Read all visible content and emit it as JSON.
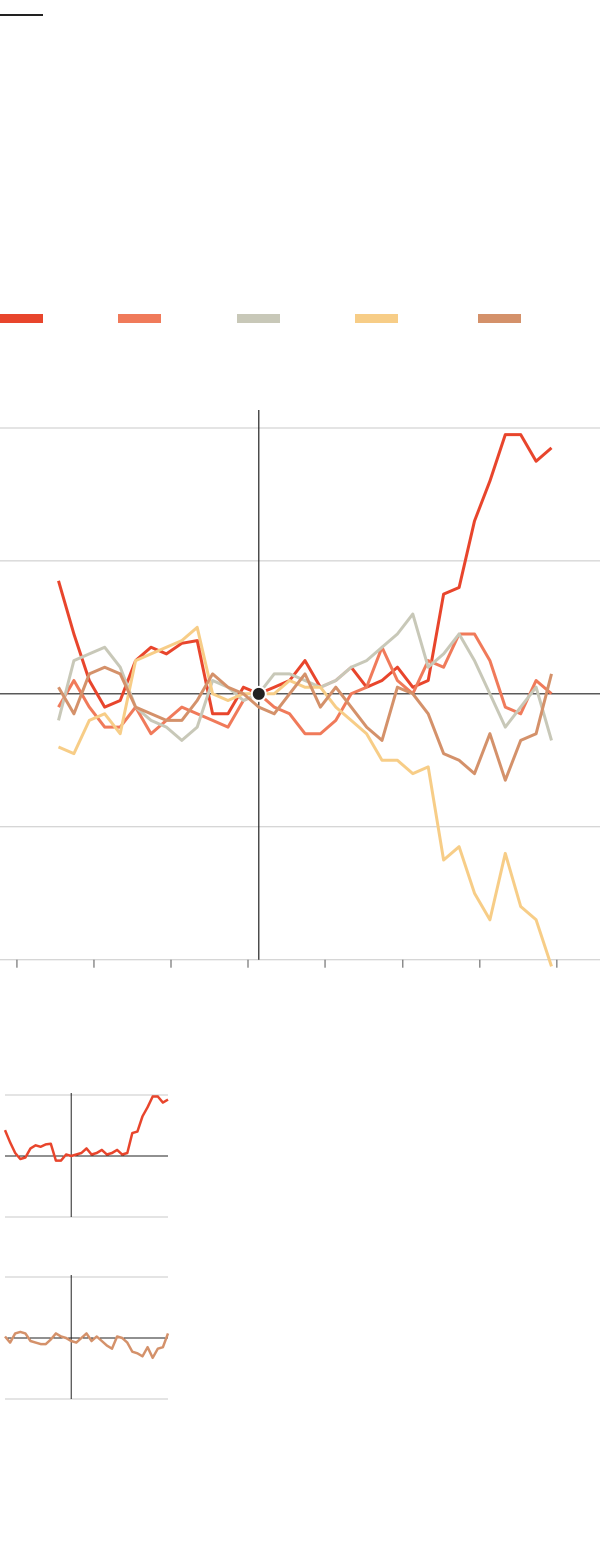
{
  "chart_data": {
    "type": "line",
    "x": [
      -2.6,
      -2.4,
      -2.2,
      -2.0,
      -1.8,
      -1.6,
      -1.4,
      -1.2,
      -1.0,
      -0.8,
      -0.6,
      -0.4,
      -0.2,
      0.0,
      0.2,
      0.4,
      0.6,
      0.8,
      1.0,
      1.2,
      1.4,
      1.6,
      1.8,
      2.0,
      2.2,
      2.4,
      2.6,
      2.8,
      3.0,
      3.2,
      3.4,
      3.6,
      3.8
    ],
    "series": [
      {
        "color": "#e8452c",
        "values": [
          0.85,
          0.45,
          0.1,
          -0.1,
          -0.05,
          0.25,
          0.35,
          0.3,
          0.38,
          0.4,
          -0.15,
          -0.15,
          0.05,
          0,
          0.05,
          0.1,
          0.25,
          0.05,
          0.1,
          0.2,
          0.05,
          0.1,
          0.2,
          0.05,
          0.1,
          0.75,
          0.8,
          1.3,
          1.6,
          1.95,
          1.95,
          1.75,
          1.85
        ]
      },
      {
        "color": "#f07a5a",
        "values": [
          -0.1,
          0.1,
          -0.1,
          -0.25,
          -0.25,
          -0.1,
          -0.3,
          -0.2,
          -0.1,
          -0.15,
          -0.2,
          -0.25,
          -0.05,
          0,
          -0.1,
          -0.15,
          -0.3,
          -0.3,
          -0.2,
          0,
          0.05,
          0.35,
          0.1,
          0,
          0.25,
          0.2,
          0.45,
          0.45,
          0.25,
          -0.1,
          -0.15,
          0.1,
          0
        ]
      },
      {
        "color": "#c8c8b8",
        "values": [
          -0.2,
          0.25,
          0.3,
          0.35,
          0.2,
          -0.1,
          -0.2,
          -0.25,
          -0.35,
          -0.25,
          0.1,
          0.05,
          -0.05,
          0,
          0.15,
          0.15,
          0.1,
          0.05,
          0.1,
          0.2,
          0.25,
          0.35,
          0.45,
          0.6,
          0.2,
          0.3,
          0.45,
          0.25,
          0,
          -0.25,
          -0.1,
          0.05,
          -0.35
        ]
      },
      {
        "color": "#f7cd87",
        "values": [
          -0.4,
          -0.45,
          -0.2,
          -0.15,
          -0.3,
          0.25,
          0.3,
          0.35,
          0.4,
          0.5,
          0,
          -0.05,
          0,
          0,
          0,
          0.1,
          0.05,
          0.05,
          -0.1,
          -0.2,
          -0.3,
          -0.5,
          -0.5,
          -0.6,
          -0.55,
          -1.25,
          -1.15,
          -1.5,
          -1.7,
          -1.2,
          -1.6,
          -1.7,
          -2.05
        ]
      },
      {
        "color": "#d4916a",
        "values": [
          0.05,
          -0.15,
          0.15,
          0.2,
          0.15,
          -0.1,
          -0.15,
          -0.2,
          -0.2,
          -0.05,
          0.15,
          0.05,
          0,
          -0.1,
          -0.15,
          0,
          0.15,
          -0.1,
          0.05,
          -0.1,
          -0.25,
          -0.35,
          0.05,
          0,
          -0.15,
          -0.45,
          -0.5,
          -0.6,
          -0.3,
          -0.65,
          -0.35,
          -0.3,
          0.15
        ]
      }
    ],
    "xlim": [
      -3.36,
      4.43
    ],
    "xticks": [
      -3.14,
      -2.14,
      -1.14,
      -0.14,
      0.86,
      1.87,
      2.87,
      3.87
    ],
    "ylim": [
      -2.1,
      2.15
    ],
    "yticks": [
      -2,
      -1,
      0,
      1,
      2
    ],
    "grid": true,
    "small_multiples": [
      0,
      4
    ],
    "small_xlim": [
      -2.6,
      3.8
    ],
    "small_ylim": [
      -2,
      2
    ],
    "small_yticks": [
      -2,
      0,
      2
    ]
  }
}
